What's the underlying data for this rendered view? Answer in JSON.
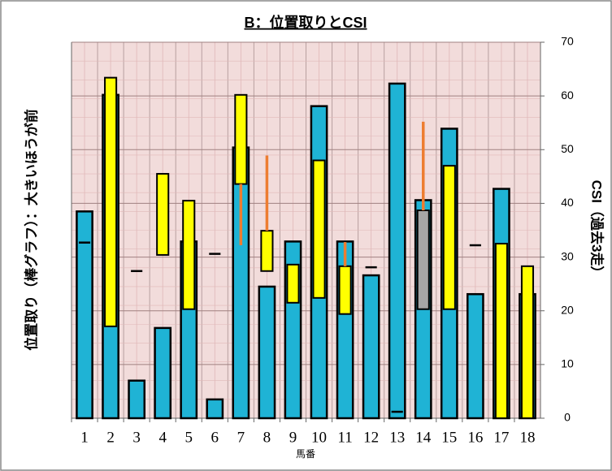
{
  "chart_data": {
    "type": "bar",
    "title": "B：位置取りとCSI",
    "ylabel": "位置取り（棒グラフ）：大きいほうが前",
    "y2label": "CSI（過去3走）",
    "xlabel": "馬番",
    "categories": [
      1,
      2,
      3,
      4,
      5,
      6,
      7,
      8,
      9,
      10,
      11,
      12,
      13,
      14,
      15,
      16,
      17,
      18
    ],
    "ylim": [
      0,
      10
    ],
    "y2lim": [
      0,
      70
    ],
    "y2ticks": [
      0,
      10,
      20,
      30,
      40,
      50,
      60,
      70
    ],
    "grid": true,
    "series": [
      {
        "type": "bar",
        "color": "#1fb3d5",
        "values": [
          5.5,
          8.6,
          1.0,
          2.4,
          4.7,
          0.5,
          7.2,
          3.5,
          4.7,
          8.3,
          4.7,
          3.8,
          8.9,
          5.8,
          7.7,
          3.3,
          6.1,
          3.3
        ]
      },
      {
        "type": "range",
        "axis": "y2",
        "color": "#ffff00",
        "low": [
          null,
          17.1,
          null,
          30.4,
          20.3,
          null,
          43.6,
          27.4,
          21.5,
          22.4,
          19.4,
          null,
          null,
          null,
          20.3,
          null,
          0,
          0
        ],
        "high": [
          null,
          63.4,
          null,
          45.5,
          40.5,
          null,
          60.2,
          34.9,
          28.6,
          48,
          28.3,
          null,
          null,
          null,
          47,
          null,
          32.5,
          28.3
        ]
      },
      {
        "type": "range",
        "axis": "y2",
        "color": "#a6a6a6",
        "low": [
          null,
          null,
          null,
          null,
          null,
          null,
          null,
          null,
          null,
          null,
          null,
          null,
          null,
          20.3,
          null,
          null,
          null,
          null
        ],
        "high": [
          null,
          null,
          null,
          null,
          null,
          null,
          null,
          null,
          null,
          null,
          null,
          null,
          null,
          38.7,
          null,
          null,
          null,
          null
        ]
      },
      {
        "type": "marker",
        "axis": "y2",
        "color": "#000000",
        "values": [
          32.7,
          null,
          27.4,
          null,
          null,
          30.6,
          null,
          null,
          null,
          null,
          null,
          28.1,
          1.2,
          null,
          null,
          32.2,
          null,
          null
        ]
      },
      {
        "type": "line-range",
        "axis": "y2",
        "color": "#ed7d31",
        "low": [
          null,
          null,
          null,
          null,
          null,
          null,
          32.2,
          34.9,
          null,
          null,
          28.3,
          null,
          null,
          38.7,
          null,
          null,
          null,
          null
        ],
        "high": [
          null,
          null,
          null,
          null,
          null,
          null,
          43.6,
          48.9,
          null,
          null,
          32.8,
          null,
          null,
          55.2,
          null,
          null,
          null,
          null
        ]
      }
    ]
  }
}
